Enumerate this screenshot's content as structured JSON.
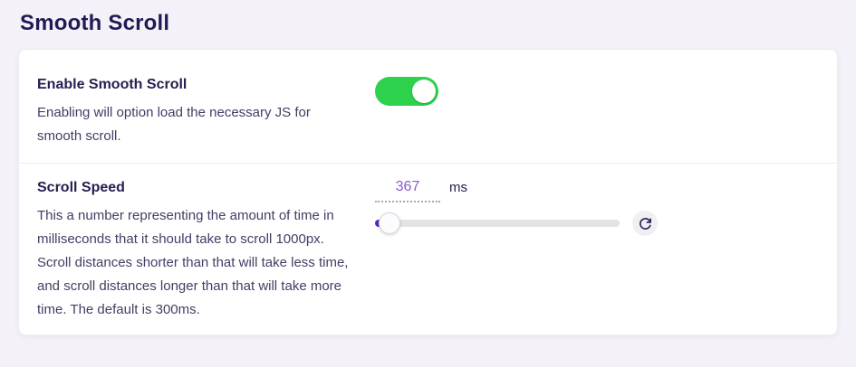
{
  "page": {
    "title": "Smooth Scroll"
  },
  "settings": [
    {
      "label": "Enable Smooth Scroll",
      "description": "Enabling will option load the necessary JS for smooth scroll.",
      "control": "toggle",
      "toggle_state": "on"
    },
    {
      "label": "Scroll Speed",
      "description": "This a number representing the amount of time in milliseconds that it should take to scroll 1000px. Scroll distances shorter than that will take less time, and scroll distances longer than that will take more time. The default is 300ms.",
      "control": "slider",
      "value": "367",
      "unit": "ms",
      "slider_percent": 6
    }
  ],
  "icons": {
    "reset": "rotate-cw-icon"
  },
  "colors": {
    "page_background": "#f4f2f8",
    "card_background": "#ffffff",
    "toggle_on_green": "#2dd14c",
    "value_purple": "#8e57cd",
    "slider_fill_purple": "#5a27c4",
    "slider_track_gray": "#e4e2e7",
    "heading_navy": "#211b54"
  }
}
